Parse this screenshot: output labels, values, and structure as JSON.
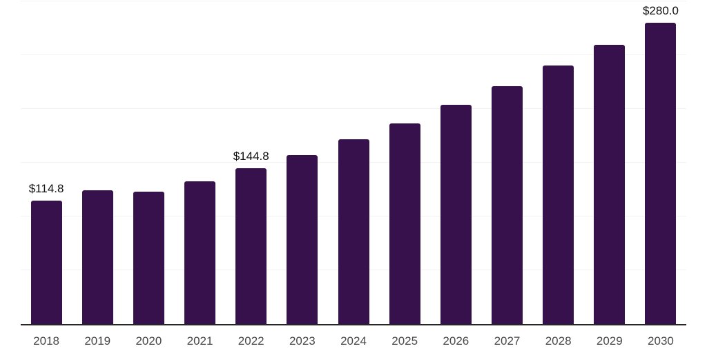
{
  "chart_data": {
    "type": "bar",
    "title": "",
    "xlabel": "",
    "ylabel": "",
    "categories": [
      "2018",
      "2019",
      "2020",
      "2021",
      "2022",
      "2023",
      "2024",
      "2025",
      "2026",
      "2027",
      "2028",
      "2029",
      "2030"
    ],
    "values": [
      114.8,
      124.1,
      123.3,
      132.9,
      144.8,
      157.1,
      171.6,
      186.5,
      203.6,
      221.1,
      240.1,
      259.6,
      280.0
    ],
    "value_labels": [
      "$114.8",
      "",
      "",
      "",
      "$144.8",
      "",
      "",
      "",
      "",
      "",
      "",
      "",
      "$280.0"
    ],
    "ylim": [
      0,
      300
    ],
    "grid_step": 50,
    "grid": "on",
    "legend": "none",
    "colors": {
      "bar": "#36114b",
      "axis": "#262626",
      "grid": "#f3f1f3",
      "value_label": "#111111",
      "tick_label": "#4a4a4a",
      "background": "#ffffff"
    }
  }
}
